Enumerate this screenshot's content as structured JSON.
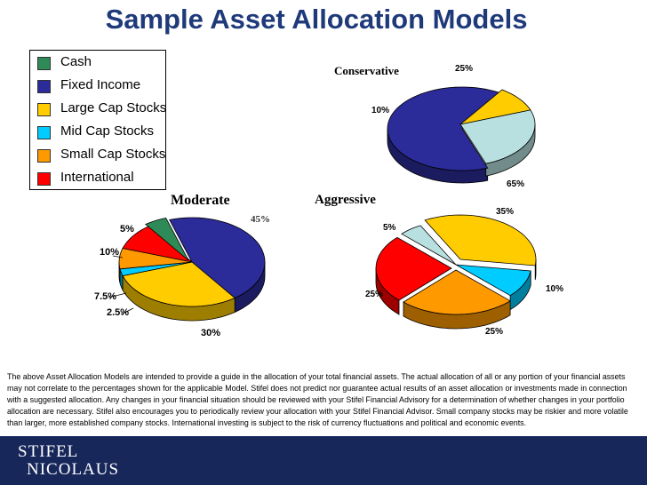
{
  "title": "Sample Asset Allocation Models",
  "legend": [
    {
      "label": "Cash",
      "color": "#2e8b57"
    },
    {
      "label": "Fixed Income",
      "color": "#2b2b99"
    },
    {
      "label": "Large Cap Stocks",
      "color": "#ffcc00"
    },
    {
      "label": "Mid Cap Stocks",
      "color": "#00ccff"
    },
    {
      "label": "Small Cap Stocks",
      "color": "#ff9900"
    },
    {
      "label": "International",
      "color": "#ff0000"
    }
  ],
  "chart_data": [
    {
      "type": "pie",
      "title": "Conservative",
      "slices": [
        {
          "category": "Fixed Income",
          "value": 65,
          "label": "65%"
        },
        {
          "category": "Large Cap Stocks",
          "value": 10,
          "label": "10%"
        },
        {
          "category": "Light Blue",
          "value": 25,
          "label": "25%",
          "color": "#b8e0e0"
        }
      ]
    },
    {
      "type": "pie",
      "title": "Moderate",
      "slices": [
        {
          "category": "Fixed Income",
          "value": 45,
          "label": "45%"
        },
        {
          "category": "Large Cap Stocks",
          "value": 30,
          "label": "30%"
        },
        {
          "category": "Mid Cap Stocks",
          "value": 2.5,
          "label": "2.5%"
        },
        {
          "category": "Small Cap Stocks",
          "value": 7.5,
          "label": "7.5%"
        },
        {
          "category": "International",
          "value": 10,
          "label": "10%"
        },
        {
          "category": "Cash",
          "value": 5,
          "label": "5%"
        }
      ]
    },
    {
      "type": "pie",
      "title": "Aggressive",
      "slices": [
        {
          "category": "Large Cap Stocks",
          "value": 35,
          "label": "35%"
        },
        {
          "category": "Mid Cap Stocks",
          "value": 10,
          "label": "10%"
        },
        {
          "category": "Small Cap Stocks",
          "value": 25,
          "label": "25%"
        },
        {
          "category": "International",
          "value": 25,
          "label": "25%"
        },
        {
          "category": "Light Blue",
          "value": 5,
          "label": "5%",
          "color": "#b8e0e0"
        }
      ]
    }
  ],
  "disclaimer": "The above Asset Allocation Models are intended to provide a guide in the allocation of your total financial assets. The actual allocation of all or any portion of your financial assets may not correlate to the percentages shown for the applicable Model. Stifel does not predict nor guarantee actual results of an asset allocation or investments made in connection with a suggested allocation. Any changes in your financial situation should be reviewed with your Stifel Financial Advisory for a determination of whether changes in your portfolio allocation are necessary. Stifel also encourages you to periodically review your allocation with your Stifel Financial Advisor.  Small company stocks may be riskier and more volatile than larger, more established company stocks. International investing is subject to the risk of currency fluctuations and political and economic events.",
  "footer": {
    "logo_line1": "STIFEL",
    "logo_line2": "NICOLAUS"
  }
}
